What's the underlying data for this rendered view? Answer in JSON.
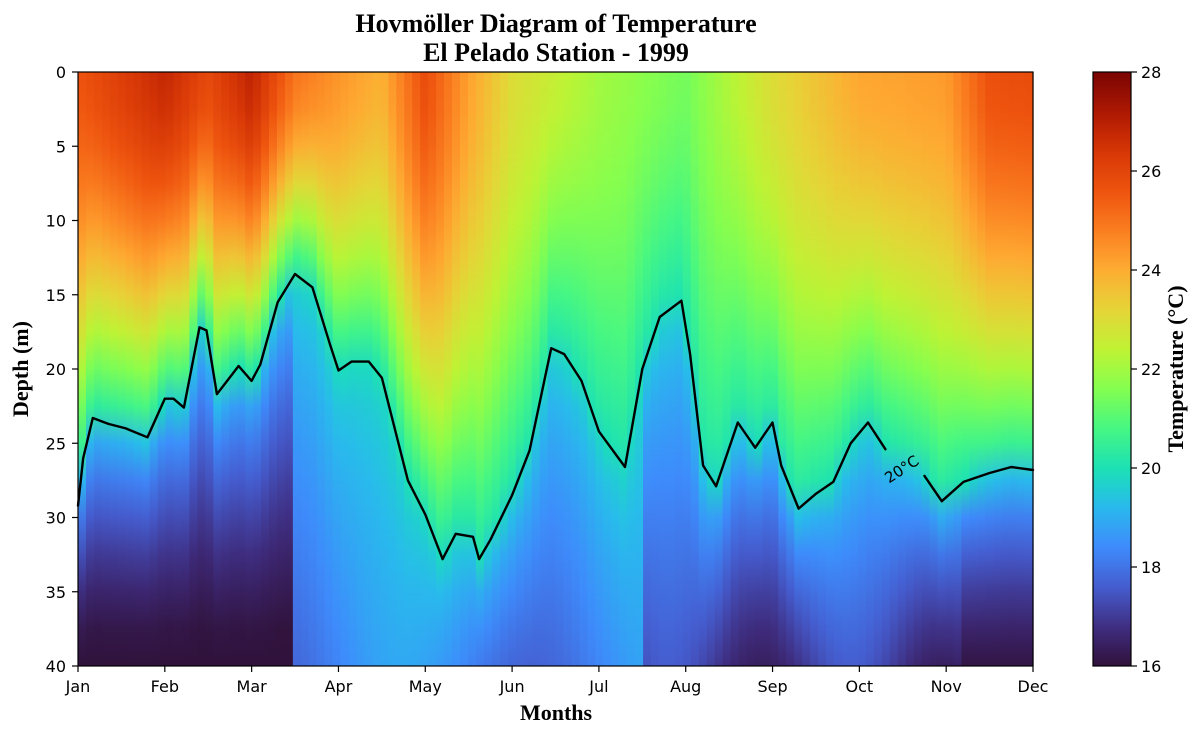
{
  "chart_data": {
    "type": "heatmap",
    "title": "Hovmöller Diagram of Temperature",
    "subtitle": "El Pelado Station - 1999",
    "xlabel": "Months",
    "ylabel": "Depth (m)",
    "x_ticks": [
      "Jan",
      "Feb",
      "Mar",
      "Apr",
      "May",
      "Jun",
      "Jul",
      "Aug",
      "Sep",
      "Oct",
      "Nov",
      "Dec"
    ],
    "y_ticks": [
      "0",
      "5",
      "10",
      "15",
      "20",
      "25",
      "30",
      "35",
      "40"
    ],
    "xlim": [
      0,
      11
    ],
    "ylim": [
      40,
      0
    ],
    "colorbar": {
      "label": "Temperature (°C)",
      "ticks": [
        "16",
        "18",
        "20",
        "22",
        "24",
        "26",
        "28"
      ],
      "range": [
        16,
        28
      ],
      "colormap": "turbo"
    },
    "surface_temperature": [
      {
        "month": 0.0,
        "temp": 25.6
      },
      {
        "month": 0.5,
        "temp": 26.2
      },
      {
        "month": 1.0,
        "temp": 26.8
      },
      {
        "month": 1.5,
        "temp": 25.9
      },
      {
        "month": 2.0,
        "temp": 26.9
      },
      {
        "month": 2.5,
        "temp": 25.0
      },
      {
        "month": 3.0,
        "temp": 24.4
      },
      {
        "month": 3.5,
        "temp": 23.9
      },
      {
        "month": 4.0,
        "temp": 25.8
      },
      {
        "month": 4.5,
        "temp": 24.2
      },
      {
        "month": 5.0,
        "temp": 23.0
      },
      {
        "month": 6.0,
        "temp": 22.0
      },
      {
        "month": 7.0,
        "temp": 21.4
      },
      {
        "month": 8.0,
        "temp": 23.0
      },
      {
        "month": 9.0,
        "temp": 24.1
      },
      {
        "month": 10.0,
        "temp": 24.3
      },
      {
        "month": 10.5,
        "temp": 25.7
      },
      {
        "month": 11.0,
        "temp": 25.8
      }
    ],
    "contour_20C": {
      "label": "20°C",
      "level": 20,
      "points": [
        [
          0.0,
          29.2
        ],
        [
          0.06,
          26.0
        ],
        [
          0.17,
          23.3
        ],
        [
          0.35,
          23.7
        ],
        [
          0.55,
          24.0
        ],
        [
          0.8,
          24.6
        ],
        [
          1.0,
          22.0
        ],
        [
          1.1,
          22.0
        ],
        [
          1.22,
          22.6
        ],
        [
          1.4,
          17.2
        ],
        [
          1.48,
          17.4
        ],
        [
          1.6,
          21.7
        ],
        [
          1.85,
          19.8
        ],
        [
          2.0,
          20.8
        ],
        [
          2.1,
          19.7
        ],
        [
          2.3,
          15.5
        ],
        [
          2.5,
          13.6
        ],
        [
          2.7,
          14.5
        ],
        [
          2.9,
          18.3
        ],
        [
          3.0,
          20.1
        ],
        [
          3.15,
          19.5
        ],
        [
          3.35,
          19.5
        ],
        [
          3.5,
          20.6
        ],
        [
          3.8,
          27.5
        ],
        [
          4.0,
          29.8
        ],
        [
          4.2,
          32.8
        ],
        [
          4.35,
          31.1
        ],
        [
          4.55,
          31.3
        ],
        [
          4.62,
          32.8
        ],
        [
          4.75,
          31.5
        ],
        [
          5.0,
          28.5
        ],
        [
          5.2,
          25.5
        ],
        [
          5.45,
          18.6
        ],
        [
          5.6,
          19.0
        ],
        [
          5.8,
          20.8
        ],
        [
          6.0,
          24.2
        ],
        [
          6.3,
          26.6
        ],
        [
          6.5,
          20.0
        ],
        [
          6.7,
          16.5
        ],
        [
          6.95,
          15.4
        ],
        [
          7.05,
          19.0
        ],
        [
          7.2,
          26.5
        ],
        [
          7.35,
          27.9
        ],
        [
          7.6,
          23.6
        ],
        [
          7.8,
          25.3
        ],
        [
          8.0,
          23.6
        ],
        [
          8.1,
          26.5
        ],
        [
          8.3,
          29.4
        ],
        [
          8.5,
          28.4
        ],
        [
          8.7,
          27.6
        ],
        [
          8.9,
          25.0
        ],
        [
          9.1,
          23.6
        ],
        [
          9.3,
          25.4
        ]
      ],
      "points_after_label": [
        [
          9.75,
          27.2
        ],
        [
          9.95,
          28.9
        ],
        [
          10.2,
          27.6
        ],
        [
          10.5,
          27.0
        ],
        [
          10.75,
          26.6
        ],
        [
          11.0,
          26.8
        ]
      ]
    }
  }
}
